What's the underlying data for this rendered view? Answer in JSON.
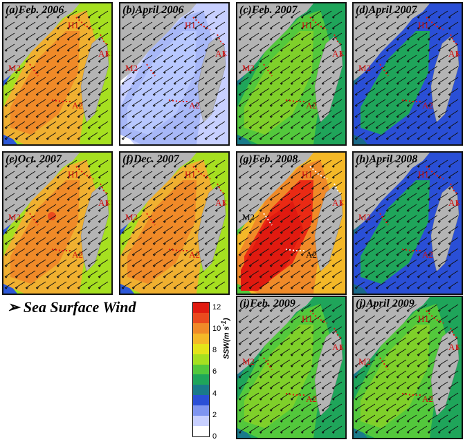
{
  "legend": {
    "title": "➢ Sea Surface Wind",
    "colorbar_label": "SSW(m s",
    "colorbar_unit_exp": "-1",
    "colorbar_unit_close": ")",
    "ticks": [
      "0",
      "2",
      "4",
      "6",
      "8",
      "10",
      "12"
    ],
    "colors": [
      "#ffffff",
      "#c8d0ff",
      "#7f95f0",
      "#2a4fd6",
      "#1a7a8a",
      "#1fa55a",
      "#53c83c",
      "#a6e020",
      "#e4e41a",
      "#f4b828",
      "#f08a28",
      "#ea4a1e",
      "#e01a10"
    ]
  },
  "panels": [
    {
      "title": "(a)Feb. 2006",
      "scheme": "orange",
      "labels": [
        "H1",
        "A1",
        "K1",
        "M2",
        "A2"
      ]
    },
    {
      "title": "(b)April 2006",
      "scheme": "lightblue",
      "labels": [
        "H1",
        "A1",
        "K1",
        "M2",
        "A2"
      ]
    },
    {
      "title": "(c)Feb. 2007",
      "scheme": "green",
      "labels": [
        "H1",
        "A1",
        "K1",
        "M2",
        "A2"
      ]
    },
    {
      "title": "(d)April 2007",
      "scheme": "blue",
      "labels": [
        "H1",
        "A1",
        "K1",
        "M2",
        "A2"
      ]
    },
    {
      "title": "(e)Oct. 2007",
      "scheme": "orange",
      "labels": [
        "H1",
        "A1",
        "K1",
        "M2",
        "A2"
      ]
    },
    {
      "title": "(f)Dec. 2007",
      "scheme": "orange",
      "labels": [
        "H1",
        "A1",
        "K1",
        "M2",
        "A2"
      ]
    },
    {
      "title": "(g)Feb. 2008",
      "scheme": "red",
      "labels": [
        "H1",
        "A1",
        "K1",
        "M2",
        "A2"
      ]
    },
    {
      "title": "(h)April 2008",
      "scheme": "blue",
      "labels": [
        "H1",
        "A1",
        "K1",
        "M2",
        "A2"
      ]
    },
    {
      "title": "(i)Feb. 2009",
      "scheme": "green",
      "labels": [
        "H1",
        "A1",
        "K1",
        "M2",
        "A2"
      ]
    },
    {
      "title": "(j)April 2009",
      "scheme": "green",
      "labels": [
        "H1",
        "A1",
        "K1",
        "M2",
        "A2"
      ]
    }
  ]
}
